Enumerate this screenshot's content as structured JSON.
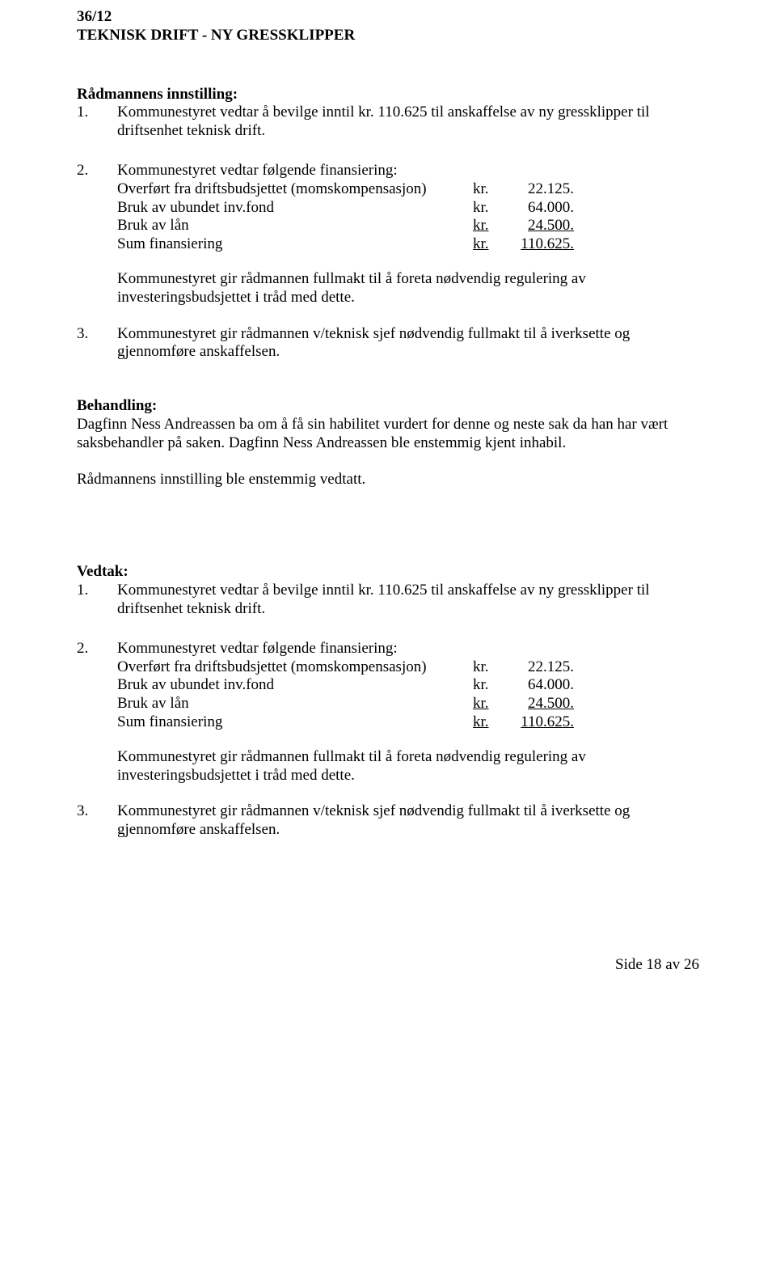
{
  "case_no": "36/12",
  "title": "TEKNISK DRIFT - NY GRESSKLIPPER",
  "radmannens_label": "Rådmannens innstilling:",
  "item1_num": "1.",
  "item1_text": "Kommunestyret vedtar å bevilge inntil kr. 110.625 til anskaffelse av ny gressklipper til driftsenhet teknisk drift.",
  "item2_num": "2.",
  "item2_text": "Kommunestyret vedtar følgende finansiering:",
  "fin_rows": [
    {
      "label": "Overført fra driftsbudsjettet (momskompensasjon)",
      "kr": "kr.",
      "val": "22.125.",
      "u": false
    },
    {
      "label": "Bruk av ubundet inv.fond",
      "kr": "kr.",
      "val": "64.000.",
      "u": false
    },
    {
      "label": "Bruk av lån",
      "kr": "kr.",
      "val": "24.500.",
      "u": true
    },
    {
      "label": "Sum finansiering",
      "kr": "kr.",
      "val": "110.625.",
      "u": true
    }
  ],
  "fullmakt_text": "Kommunestyret gir rådmannen fullmakt til å foreta nødvendig regulering av investeringsbudsjettet i tråd med dette.",
  "item3_num": "3.",
  "item3_text": "Kommunestyret gir rådmannen v/teknisk sjef nødvendig fullmakt til å iverksette og gjennomføre anskaffelsen.",
  "behandling_label": "Behandling:",
  "behandling_text": "Dagfinn Ness Andreassen ba om å få sin habilitet vurdert for denne og neste sak da han har vært saksbehandler på saken. Dagfinn Ness Andreassen ble enstemmig kjent inhabil.",
  "innstilling_vedtatt": "Rådmannens innstilling ble enstemmig vedtatt.",
  "vedtak_label": "Vedtak:",
  "footer": "Side 18 av 26",
  "colors": {
    "text": "#000000",
    "bg": "#ffffff"
  }
}
